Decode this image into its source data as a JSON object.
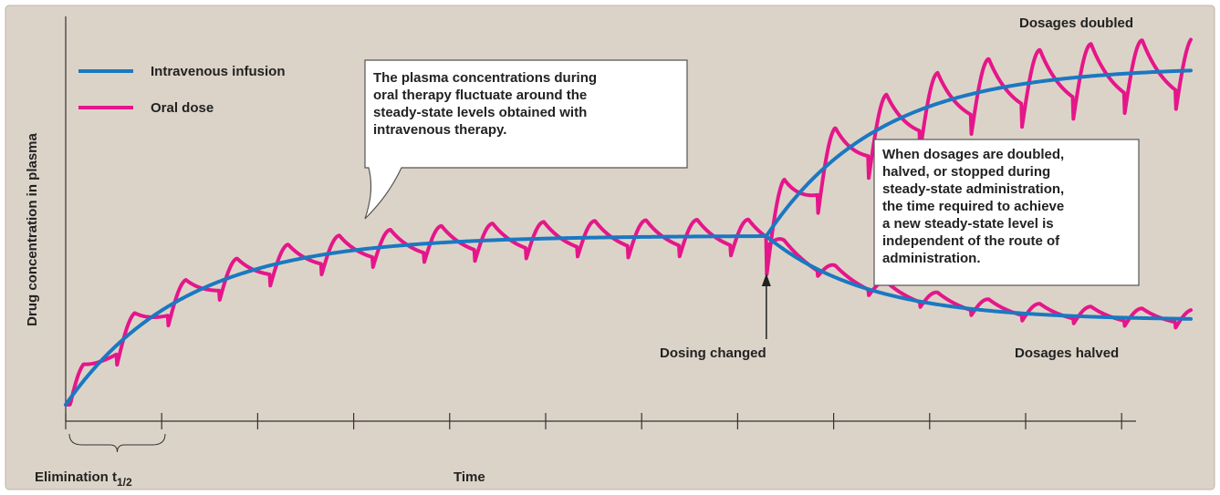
{
  "chart_data": {
    "type": "line",
    "xlabel": "Time",
    "ylabel": "Drug concentration in plasma",
    "x_range": [
      0,
      11
    ],
    "y_range": [
      0,
      2.2
    ],
    "grid": false,
    "legend": {
      "placement": "top-left",
      "items": [
        {
          "label": "Intravenous infusion",
          "color": "#1b78c1"
        },
        {
          "label": "Oral dose",
          "color": "#e5168a"
        }
      ]
    },
    "elimination_label": "Elimination t",
    "elimination_sub": "1/2",
    "dosing_change_time": 6.85,
    "dosing_change_label": "Dosing changed",
    "dosages_doubled_label": "Dosages doubled",
    "dosages_halved_label": "Dosages halved",
    "callout_1": [
      "The plasma concentrations during",
      "oral therapy fluctuate around the",
      "steady-state levels obtained with",
      "intravenous therapy."
    ],
    "callout_2": [
      "When dosages are doubled,",
      "halved, or stopped during",
      "steady-state administration,",
      "the time required to achieve",
      "a new steady-state level is",
      "independent of the route of",
      "administration."
    ],
    "series": [
      {
        "name": "Intravenous infusion",
        "color": "#1b78c1",
        "x": [
          0,
          0.5,
          1,
          1.5,
          2,
          2.5,
          3,
          3.5,
          4,
          4.5,
          5,
          5.5,
          6,
          6.5,
          6.85,
          7,
          7.5,
          8,
          8.5,
          9,
          9.5,
          10,
          10.5,
          11
        ],
        "y": [
          0,
          0.44,
          0.73,
          0.88,
          0.95,
          0.99,
          1.0,
          1.0,
          1.0,
          1.0,
          1.0,
          1.0,
          1.0,
          1.0,
          1.0,
          1.12,
          1.55,
          1.77,
          1.9,
          1.96,
          2.0,
          2.0,
          2.0,
          2.0
        ]
      },
      {
        "name": "Oral dose",
        "color": "#e5168a",
        "peak_dose_interval": 0.5,
        "x": [
          0,
          0.25,
          1,
          1.25,
          2,
          2.25,
          3,
          3.25,
          4,
          4.25,
          5,
          5.25,
          6,
          6.25,
          6.85,
          7,
          7.5,
          8,
          8.5,
          9,
          9.5,
          10,
          10.5,
          11
        ],
        "y": [
          0.02,
          0.38,
          0.81,
          1.03,
          1.05,
          1.12,
          1.08,
          1.12,
          1.08,
          1.12,
          1.08,
          1.12,
          1.08,
          1.12,
          0.9,
          1.45,
          1.8,
          1.92,
          2.08,
          2.12,
          2.18,
          2.17,
          2.2,
          1.95
        ]
      },
      {
        "name": "Oral dose",
        "color": "#e5168a",
        "x": [
          6.85,
          7,
          7.5,
          8,
          8.5,
          9,
          9.5,
          10,
          10.5,
          11
        ],
        "y": [
          1.0,
          0.85,
          0.72,
          0.63,
          0.56,
          0.53,
          0.52,
          0.52,
          0.52,
          0.52
        ]
      },
      {
        "name": "Intravenous infusion",
        "color": "#1b78c1",
        "x": [
          6.85,
          7,
          7.5,
          8,
          8.5,
          9,
          9.5,
          10,
          10.5,
          11
        ],
        "y": [
          1.0,
          0.9,
          0.75,
          0.64,
          0.58,
          0.54,
          0.52,
          0.51,
          0.5,
          0.5
        ]
      }
    ]
  }
}
